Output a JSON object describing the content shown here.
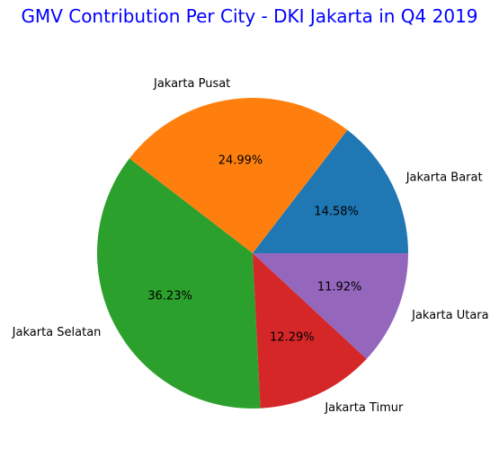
{
  "chart_data": {
    "type": "pie",
    "title": "GMV Contribution Per City - DKI Jakarta in Q4 2019",
    "title_color": "#0000ff",
    "start_angle_deg": 0,
    "direction": "counterclockwise",
    "slices": [
      {
        "label": "Jakarta Barat",
        "value": 14.58,
        "pct_label": "14.58%",
        "color": "#1f77b4"
      },
      {
        "label": "Jakarta Pusat",
        "value": 24.99,
        "pct_label": "24.99%",
        "color": "#ff7f0e"
      },
      {
        "label": "Jakarta Selatan",
        "value": 36.23,
        "pct_label": "36.23%",
        "color": "#2ca02c"
      },
      {
        "label": "Jakarta Timur",
        "value": 12.29,
        "pct_label": "12.29%",
        "color": "#d62728"
      },
      {
        "label": "Jakarta Utara",
        "value": 11.92,
        "pct_label": "11.92%",
        "color": "#9467bd"
      }
    ]
  }
}
